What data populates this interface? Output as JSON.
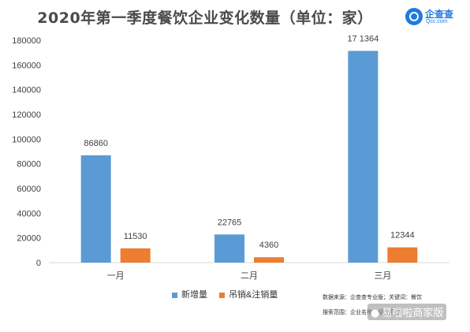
{
  "title": "2020年第一季度餐饮企业变化数量（单位：家）",
  "logo": {
    "name": "企查查",
    "sub": "Qcc.com"
  },
  "colors": {
    "new": "#5b9bd5",
    "cancel": "#ed7d31",
    "axis": "#d9d9d9",
    "text": "#404040"
  },
  "chart_data": {
    "type": "bar",
    "categories": [
      "一月",
      "二月",
      "三月"
    ],
    "series": [
      {
        "name": "新增量",
        "values": [
          86860,
          22765,
          171364
        ],
        "labels": [
          "86860",
          "22765",
          "17 1364"
        ]
      },
      {
        "name": "吊销&注销量",
        "values": [
          11530,
          4360,
          12344
        ],
        "labels": [
          "11530",
          "4360",
          "12344"
        ]
      }
    ],
    "yticks": [
      "0",
      "20000",
      "40000",
      "60000",
      "80000",
      "100000",
      "120000",
      "140000",
      "160000",
      "180000"
    ],
    "ylim": [
      0,
      180000
    ],
    "grid": false,
    "legend_position": "bottom"
  },
  "footnotes": {
    "source": "数据来源：企查查专业版；关键词：餐饮",
    "scope": "搜索范围：企业名称、经营范围"
  },
  "watermark": {
    "icon": "chat-bubble-icon",
    "text": "易啦啦商家版"
  }
}
